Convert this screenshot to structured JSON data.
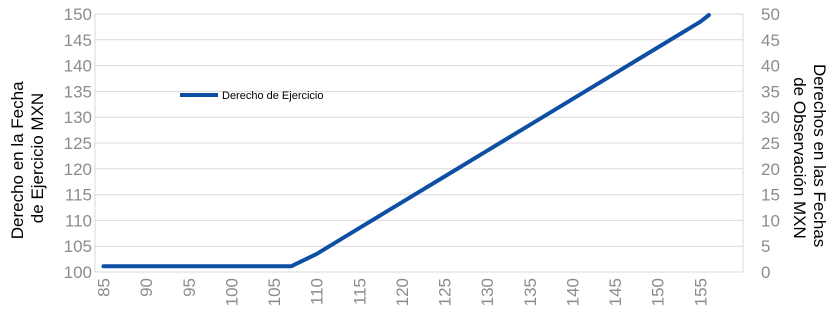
{
  "chart_data": {
    "type": "line",
    "x": [
      85,
      90,
      95,
      100,
      105,
      107,
      110,
      115,
      120,
      125,
      130,
      135,
      140,
      145,
      150,
      155,
      156
    ],
    "series": [
      {
        "name": "Derecho de Ejercicio",
        "color": "#0e4fa3",
        "values": [
          101.1,
          101.1,
          101.1,
          101.1,
          101.1,
          101.1,
          103.5,
          108.5,
          113.5,
          118.5,
          123.5,
          128.5,
          133.5,
          138.5,
          143.5,
          148.5,
          149.8
        ]
      }
    ],
    "x_ticks": [
      "85",
      "90",
      "95",
      "100",
      "105",
      "110",
      "115",
      "120",
      "125",
      "130",
      "135",
      "140",
      "145",
      "150",
      "155"
    ],
    "xlim": [
      84,
      160
    ],
    "y_left": {
      "label_lines": [
        "Derecho en la  Fecha",
        "de Ejercicio  MXN"
      ],
      "ticks": [
        "100",
        "105",
        "110",
        "115",
        "120",
        "125",
        "130",
        "135",
        "140",
        "145",
        "150"
      ],
      "ylim": [
        100,
        150
      ]
    },
    "y_right": {
      "label_lines": [
        "Derechos en las Fechas",
        "de Observación MXN"
      ],
      "ticks": [
        "0",
        "5",
        "10",
        "15",
        "20",
        "25",
        "30",
        "35",
        "40",
        "45",
        "50"
      ],
      "ylim": [
        0,
        50
      ]
    },
    "grid": "horizontal",
    "legend_position": "upper-left inside plot"
  }
}
